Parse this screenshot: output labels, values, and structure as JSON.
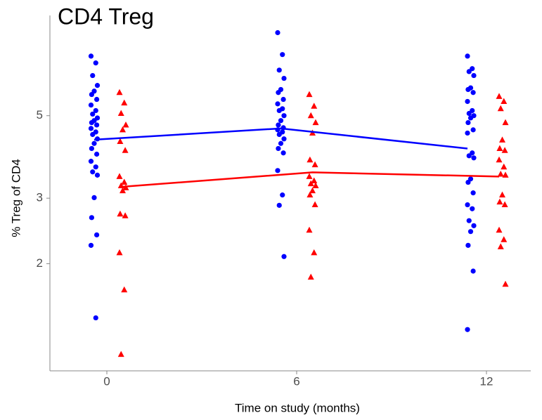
{
  "chart_data": {
    "type": "scatter",
    "title": "CD4 Treg",
    "x_label": "Time on study (months)",
    "y_label": "% Treg of CD4",
    "xlim": [
      -1.8,
      13.4
    ],
    "xticks": [
      0,
      6,
      12
    ],
    "ylim": [
      1.03,
      9.3
    ],
    "yticks": [
      2,
      3,
      5
    ],
    "log_scale_y": true,
    "grid": false,
    "series": [
      {
        "kind": "points",
        "marker": "circle",
        "color": "#0000ff",
        "x": [
          -0.5,
          -0.35,
          -0.45,
          -0.3,
          -0.4,
          -0.48,
          -0.32,
          -0.5,
          -0.35,
          -0.45,
          -0.3,
          -0.4,
          -0.48,
          -0.32,
          -0.5,
          -0.35,
          -0.45,
          -0.3,
          -0.4,
          -0.48,
          -0.32,
          -0.5,
          -0.35,
          -0.45,
          -0.3,
          -0.4,
          -0.48,
          -0.32,
          -0.5,
          -0.35,
          5.4,
          5.55,
          5.45,
          5.6,
          5.5,
          5.42,
          5.58,
          5.4,
          5.55,
          5.45,
          5.6,
          5.5,
          5.42,
          5.58,
          5.4,
          5.55,
          5.45,
          5.6,
          5.5,
          5.42,
          5.58,
          5.4,
          5.55,
          5.45,
          5.6,
          11.4,
          11.55,
          11.45,
          11.6,
          11.5,
          11.42,
          11.58,
          11.4,
          11.55,
          11.45,
          11.6,
          11.5,
          11.42,
          11.58,
          11.4,
          11.55,
          11.45,
          11.6,
          11.5,
          11.42,
          11.58,
          11.4,
          11.55,
          11.45,
          11.6,
          11.5,
          11.42,
          11.58,
          11.4
        ],
        "values": [
          7.23,
          6.93,
          6.41,
          6.03,
          5.82,
          5.7,
          5.53,
          5.34,
          5.16,
          5.05,
          4.93,
          4.85,
          4.79,
          4.72,
          4.62,
          4.52,
          4.45,
          4.33,
          4.21,
          4.08,
          3.94,
          3.77,
          3.64,
          3.53,
          3.46,
          3.01,
          2.66,
          2.39,
          2.24,
          1.43,
          8.36,
          7.3,
          6.63,
          6.3,
          5.88,
          5.77,
          5.53,
          5.38,
          5.22,
          5.16,
          5.0,
          4.85,
          4.72,
          4.64,
          4.58,
          4.52,
          4.45,
          4.33,
          4.21,
          4.08,
          3.97,
          3.56,
          3.06,
          2.87,
          2.09,
          7.23,
          6.69,
          6.57,
          6.41,
          5.94,
          5.88,
          5.77,
          5.46,
          5.16,
          5.07,
          5.0,
          4.93,
          4.79,
          4.58,
          4.49,
          3.97,
          3.9,
          3.85,
          3.38,
          3.31,
          3.1,
          2.88,
          2.81,
          2.61,
          2.53,
          2.44,
          2.24,
          1.91,
          1.33
        ]
      },
      {
        "kind": "points",
        "marker": "triangle",
        "color": "#ff0000",
        "x": [
          0.4,
          0.55,
          0.45,
          0.6,
          0.5,
          0.42,
          0.58,
          0.4,
          0.55,
          0.45,
          0.6,
          0.5,
          0.42,
          0.58,
          0.4,
          0.55,
          0.45,
          6.4,
          6.55,
          6.45,
          6.6,
          6.5,
          6.42,
          6.58,
          6.4,
          6.55,
          6.45,
          6.6,
          6.5,
          6.42,
          6.58,
          6.4,
          6.55,
          6.45,
          12.4,
          12.55,
          12.45,
          12.6,
          12.5,
          12.42,
          12.58,
          12.4,
          12.55,
          12.45,
          12.6,
          12.5,
          12.42,
          12.58,
          12.4,
          12.55,
          12.45,
          12.6
        ],
        "values": [
          5.77,
          5.41,
          5.07,
          4.72,
          4.58,
          4.26,
          4.03,
          3.43,
          3.31,
          3.24,
          3.2,
          3.14,
          2.72,
          2.69,
          2.14,
          1.7,
          1.14,
          5.7,
          5.3,
          5.0,
          4.79,
          4.49,
          3.8,
          3.69,
          3.43,
          3.34,
          3.28,
          3.24,
          3.14,
          3.06,
          2.88,
          2.46,
          2.14,
          1.84,
          5.63,
          5.46,
          5.22,
          4.79,
          4.3,
          4.08,
          4.03,
          3.8,
          3.64,
          3.48,
          3.46,
          3.06,
          2.93,
          2.88,
          2.46,
          2.32,
          2.22,
          1.76
        ]
      },
      {
        "kind": "line",
        "color": "#0000ff",
        "x": [
          -0.4,
          5.5,
          11.4
        ],
        "values": [
          4.31,
          4.62,
          4.08
        ]
      },
      {
        "kind": "line",
        "color": "#ff0000",
        "x": [
          0.5,
          6.5,
          12.4
        ],
        "values": [
          3.22,
          3.52,
          3.43
        ]
      }
    ]
  }
}
